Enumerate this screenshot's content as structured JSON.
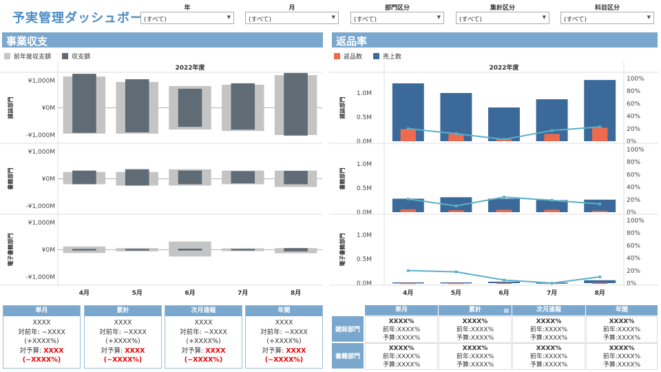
{
  "title": "予実管理ダッシュボード",
  "filters": [
    {
      "label": "年",
      "value": "(すべて)"
    },
    {
      "label": "月",
      "value": "(すべて)"
    },
    {
      "label": "部門区分",
      "value": "(すべて)"
    },
    {
      "label": "集計区分",
      "value": "(すべて)"
    },
    {
      "label": "科目区分",
      "value": "(すべて)"
    }
  ],
  "left_section": {
    "title": "事業収支",
    "legend": [
      {
        "label": "前年度収支額",
        "color": "#c4c4c4"
      },
      {
        "label": "収支額",
        "color": "#5f6b75"
      }
    ]
  },
  "right_section": {
    "title": "返品率",
    "legend": [
      {
        "label": "返品数",
        "color": "#ef6a4c"
      },
      {
        "label": "売上数",
        "color": "#3b6a9a"
      }
    ]
  },
  "chart_data": [
    {
      "type": "bar",
      "title": "2022年度",
      "categories": [
        "4月",
        "5月",
        "6月",
        "7月",
        "8月"
      ],
      "ylim": [
        -1000,
        1000
      ],
      "y_ticks": [
        "¥1,000M",
        "¥0M",
        "-¥1,000M"
      ],
      "rows": [
        {
          "name": "雑誌部門",
          "series": [
            {
              "name": "前年度収支額",
              "range": [
                [
                  -950,
                  1150
                ],
                [
                  -950,
                  950
                ],
                [
                  -800,
                  800
                ],
                [
                  -850,
                  850
                ],
                [
                  -1000,
                  1200
                ]
              ]
            },
            {
              "name": "収支額",
              "range": [
                [
                  -920,
                  1250
                ],
                [
                  -900,
                  1050
                ],
                [
                  -700,
                  700
                ],
                [
                  -800,
                  900
                ],
                [
                  -1020,
                  1280
                ]
              ]
            }
          ]
        },
        {
          "name": "書籍部門",
          "series": [
            {
              "name": "前年度収支額",
              "range": [
                [
                  -200,
                  250
                ],
                [
                  -250,
                  250
                ],
                [
                  -250,
                  350
                ],
                [
                  -200,
                  300
                ],
                [
                  -300,
                  300
                ]
              ]
            },
            {
              "name": "収支額",
              "range": [
                [
                  -200,
                  300
                ],
                [
                  -250,
                  350
                ],
                [
                  -200,
                  300
                ],
                [
                  -170,
                  280
                ],
                [
                  -200,
                  290
                ]
              ]
            }
          ]
        },
        {
          "name": "電子書籍部門",
          "series": [
            {
              "name": "前年度収支額",
              "range": [
                [
                  -120,
                  120
                ],
                [
                  -60,
                  60
                ],
                [
                  -250,
                  300
                ],
                [
                  -50,
                  50
                ],
                [
                  -130,
                  60
                ]
              ]
            },
            {
              "name": "収支額",
              "range": [
                [
                  -30,
                  30
                ],
                [
                  -30,
                  30
                ],
                [
                  -30,
                  40
                ],
                [
                  -30,
                  30
                ],
                [
                  -60,
                  60
                ]
              ]
            }
          ]
        }
      ]
    },
    {
      "type": "bar",
      "title": "2022年度",
      "categories": [
        "4月",
        "5月",
        "6月",
        "7月",
        "8月"
      ],
      "ylim": [
        0,
        1.3
      ],
      "y_ticks": [
        "1.0M",
        "0.5M",
        "0.0M"
      ],
      "y2_ticks": [
        "100%",
        "80%",
        "60%",
        "40%",
        "20%",
        "0%"
      ],
      "rows": [
        {
          "name": "雑誌部門",
          "sales": [
            1.2,
            1.0,
            0.7,
            0.87,
            1.27
          ],
          "returns": [
            0.25,
            0.15,
            0.04,
            0.15,
            0.28
          ],
          "return_rate": [
            20,
            12,
            3,
            17,
            23
          ]
        },
        {
          "name": "書籍部門",
          "sales": [
            0.28,
            0.31,
            0.28,
            0.25,
            0.26
          ],
          "returns": [
            0.06,
            0.04,
            0.05,
            0.05,
            0.03
          ],
          "return_rate": [
            21,
            10,
            24,
            19,
            13
          ]
        },
        {
          "name": "電子書籍部門",
          "sales": [
            0.015,
            0.015,
            0.03,
            0.01,
            0.06
          ],
          "returns": [
            0.004,
            0.004,
            0.006,
            0.004,
            0.006
          ],
          "return_rate": [
            20,
            18,
            5,
            0,
            10
          ]
        }
      ]
    }
  ],
  "left_kpis": [
    {
      "header": "単月",
      "value": "XXXX",
      "yoy_label": "対前年: ",
      "yoy": "−XXXX",
      "yoy_pct": "(+XXXX%)",
      "plan_label": "対予算: ",
      "plan": "XXXX",
      "plan_pct": "(−XXXX%)"
    },
    {
      "header": "累計",
      "value": "XXXX",
      "yoy_label": "対前年: ",
      "yoy": "−XXXX",
      "yoy_pct": "(+XXXX%)",
      "plan_label": "対予算: ",
      "plan": "XXXX",
      "plan_pct": "(−XXXX%)"
    },
    {
      "header": "次月速報",
      "value": "XXXX",
      "yoy_label": "対前年: ",
      "yoy": "−XXXX",
      "yoy_pct": "(+XXXX%)",
      "plan_label": "対予算: ",
      "plan": "XXXX",
      "plan_pct": "(−XXXX%)"
    },
    {
      "header": "年間",
      "value": "XXXX",
      "yoy_label": "対前年: ",
      "yoy": "−XXXX",
      "yoy_pct": "(+XXXX%)",
      "plan_label": "対予算: ",
      "plan": "XXXX",
      "plan_pct": "(−XXXX%)"
    }
  ],
  "right_table": {
    "headers": [
      "単月",
      "累計",
      "次月速報",
      "年間"
    ],
    "rows": [
      {
        "label": "雑誌部門",
        "cells": [
          {
            "main": "XXXX%",
            "yoy": "前年:XXXX%",
            "plan": "予算:XXXX%"
          },
          {
            "main": "XXXX%",
            "yoy": "前年:XXXX%",
            "plan": "予算:XXXX%"
          },
          {
            "main": "XXXX%",
            "yoy": "前年:XXXX%",
            "plan": "予算:XXXX%"
          },
          {
            "main": "XXXX%",
            "yoy": "前年:XXXX%",
            "plan": "予算:XXXX%"
          }
        ]
      },
      {
        "label": "書籍部門",
        "cells": [
          {
            "main": "XXXX%",
            "yoy": "前年:XXXX%",
            "plan": "予算:XXXX%"
          },
          {
            "main": "XXXX%",
            "yoy": "前年:XXXX%",
            "plan": "予算:XXXX%"
          },
          {
            "main": "XXXX%",
            "yoy": "前年:XXXX%",
            "plan": "予算:XXXX%"
          },
          {
            "main": "XXXX%",
            "yoy": "前年:XXXX%",
            "plan": "予算:XXXX%"
          }
        ]
      }
    ]
  }
}
